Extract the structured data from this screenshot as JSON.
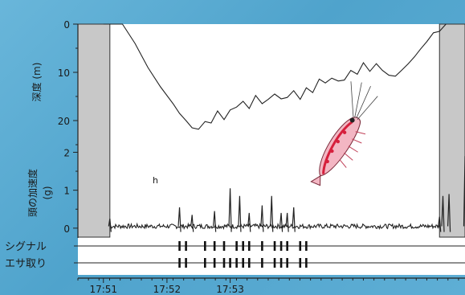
{
  "chart_data": {
    "type": "line",
    "panels": [
      {
        "ylabel": "深度 (m)",
        "ylim": [
          0,
          25
        ],
        "yticks": [
          0,
          10,
          20
        ],
        "series": [
          {
            "x": [
              17.85,
              17.8533,
              17.855,
              17.8583,
              17.8617,
              17.865,
              17.8683,
              17.87,
              17.8717,
              17.8733,
              17.875,
              17.8767,
              17.8783,
              17.88,
              17.8817,
              17.8833,
              17.885,
              17.8867,
              17.8883,
              17.89,
              17.8917,
              17.8933,
              17.895,
              17.8967,
              17.8983,
              17.9,
              17.9017,
              17.9033,
              17.905,
              17.9067,
              17.9083,
              17.91,
              17.9117,
              17.9133,
              17.915,
              17.9167,
              17.9183,
              17.92,
              17.9217,
              17.9233,
              17.925,
              17.9267,
              17.9283,
              17.93,
              17.9317,
              17.9333,
              17.935,
              17.9367,
              17.9383,
              17.94
            ],
            "y": [
              0,
              0,
              0,
              4,
              9,
              13,
              16.5,
              18.5,
              20,
              21.5,
              21.8,
              20.2,
              20.5,
              18,
              19.8,
              17.8,
              17.2,
              16,
              17.5,
              14.8,
              16.5,
              15.6,
              14.5,
              15.5,
              15.2,
              13.8,
              15.6,
              13.2,
              14.2,
              11.4,
              12.2,
              11.2,
              11.8,
              11.6,
              9.6,
              10.4,
              8,
              9.8,
              8.2,
              9.6,
              10.6,
              10.8,
              9.6,
              8.3,
              6.8,
              5.2,
              3.6,
              1.8,
              1.5,
              0
            ]
          }
        ]
      },
      {
        "ylabel": "頭の加速度 (g)",
        "ylim": [
          -0.3,
          2.2
        ],
        "yticks": [
          0,
          1,
          2
        ],
        "annotation": "h",
        "series": [
          {
            "baseline": 0.05,
            "spikes": [
              {
                "x": 17.8517,
                "y": 0.25
              },
              {
                "x": 17.87,
                "y": 0.55
              },
              {
                "x": 17.8733,
                "y": 0.35
              },
              {
                "x": 17.8792,
                "y": 0.45
              },
              {
                "x": 17.8833,
                "y": 1.05
              },
              {
                "x": 17.8858,
                "y": 0.85
              },
              {
                "x": 17.8883,
                "y": 0.4
              },
              {
                "x": 17.8917,
                "y": 0.6
              },
              {
                "x": 17.8942,
                "y": 0.85
              },
              {
                "x": 17.8967,
                "y": 0.4
              },
              {
                "x": 17.8983,
                "y": 0.4
              },
              {
                "x": 17.9,
                "y": 0.55
              },
              {
                "x": 17.9383,
                "y": 0.3
              },
              {
                "x": 17.9392,
                "y": 0.85
              },
              {
                "x": 17.9408,
                "y": 0.9
              },
              {
                "x": 17.945,
                "y": 1.9
              }
            ]
          }
        ]
      }
    ],
    "event_rows": [
      {
        "label": "シグナル",
        "x": [
          17.87,
          17.8717,
          17.8767,
          17.8792,
          17.8817,
          17.885,
          17.8867,
          17.8883,
          17.8917,
          17.895,
          17.8967,
          17.8983,
          17.9017,
          17.9033
        ]
      },
      {
        "label": "エサ取り",
        "x": [
          17.87,
          17.8717,
          17.8767,
          17.8792,
          17.8817,
          17.8833,
          17.885,
          17.8867,
          17.8883,
          17.8917,
          17.895,
          17.8967,
          17.8983,
          17.9017,
          17.9033
        ]
      }
    ],
    "shaded_intervals": [
      [
        17.8433,
        17.8517
      ],
      [
        17.9383,
        17.945
      ]
    ],
    "xlim": [
      17.8433,
      17.945
    ],
    "xticks": [
      "17:51",
      "17:52",
      "17:53"
    ],
    "xtick_values": [
      17.85,
      17.8667,
      17.8833
    ],
    "colors": {
      "line": "#222222",
      "shade": "#c8c8c8",
      "background": "#ffffff"
    }
  }
}
